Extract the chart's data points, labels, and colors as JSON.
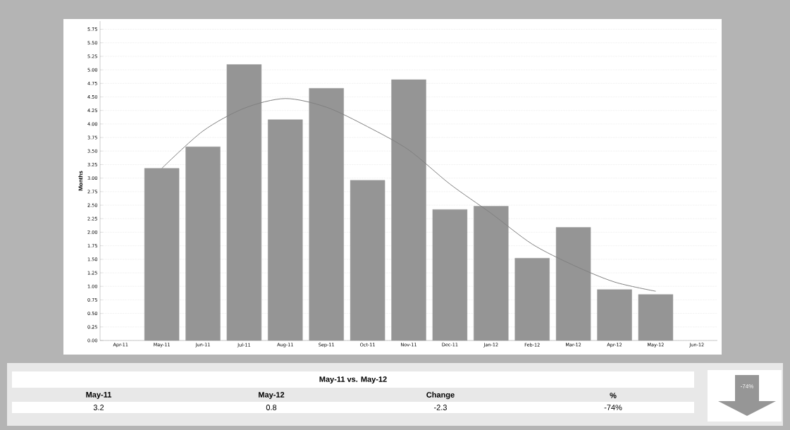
{
  "chart_data": {
    "type": "bar",
    "ylabel": "Months",
    "categories": [
      "Apr-11",
      "May-11",
      "Jun-11",
      "Jul-11",
      "Aug-11",
      "Sep-11",
      "Oct-11",
      "Nov-11",
      "Dec-11",
      "Jan-12",
      "Feb-12",
      "Mar-12",
      "Apr-12",
      "May-12",
      "Jun-12"
    ],
    "series": [
      {
        "color": "#959595",
        "values": [
          null,
          3.18,
          3.58,
          5.1,
          4.08,
          4.66,
          2.96,
          4.82,
          2.42,
          2.48,
          1.52,
          2.09,
          0.94,
          0.85,
          null
        ]
      },
      {
        "type": "line",
        "color": "#808080",
        "values": [
          null,
          3.18,
          3.87,
          4.29,
          4.47,
          4.31,
          3.95,
          3.52,
          2.89,
          2.35,
          1.78,
          1.39,
          1.08,
          0.91,
          null
        ]
      }
    ],
    "ylim": [
      0,
      5.9
    ],
    "yticks": [
      {
        "value": 0,
        "label": "0.00"
      },
      {
        "value": 0.25,
        "label": "0.25"
      },
      {
        "value": 0.5,
        "label": "0.50"
      },
      {
        "value": 0.75,
        "label": "0.75"
      },
      {
        "value": 1,
        "label": "1.00"
      },
      {
        "value": 1.25,
        "label": "1.25"
      },
      {
        "value": 1.5,
        "label": "1.50"
      },
      {
        "value": 1.75,
        "label": "1.75"
      },
      {
        "value": 2,
        "label": "2.00"
      },
      {
        "value": 2.25,
        "label": "2.25"
      },
      {
        "value": 2.5,
        "label": "2.50"
      },
      {
        "value": 2.75,
        "label": "2.75"
      },
      {
        "value": 3,
        "label": "3.00"
      },
      {
        "value": 3.25,
        "label": "3.25"
      },
      {
        "value": 3.5,
        "label": "3.50"
      },
      {
        "value": 3.75,
        "label": "3.75"
      },
      {
        "value": 4,
        "label": "4.00"
      },
      {
        "value": 4.25,
        "label": "4.25"
      },
      {
        "value": 4.5,
        "label": "4.50"
      },
      {
        "value": 4.75,
        "label": "4.75"
      },
      {
        "value": 5,
        "label": "5.00"
      },
      {
        "value": 5.25,
        "label": "5.25"
      },
      {
        "value": 5.5,
        "label": "5.50"
      },
      {
        "value": 5.75,
        "label": "5.75"
      }
    ],
    "grid": "y",
    "annotations": [
      "May-11 vs. May-12",
      "May-11",
      "May-12",
      "Change",
      "%",
      "3.2",
      "0.8",
      "-2.3",
      "-74%",
      "-74%"
    ]
  }
}
